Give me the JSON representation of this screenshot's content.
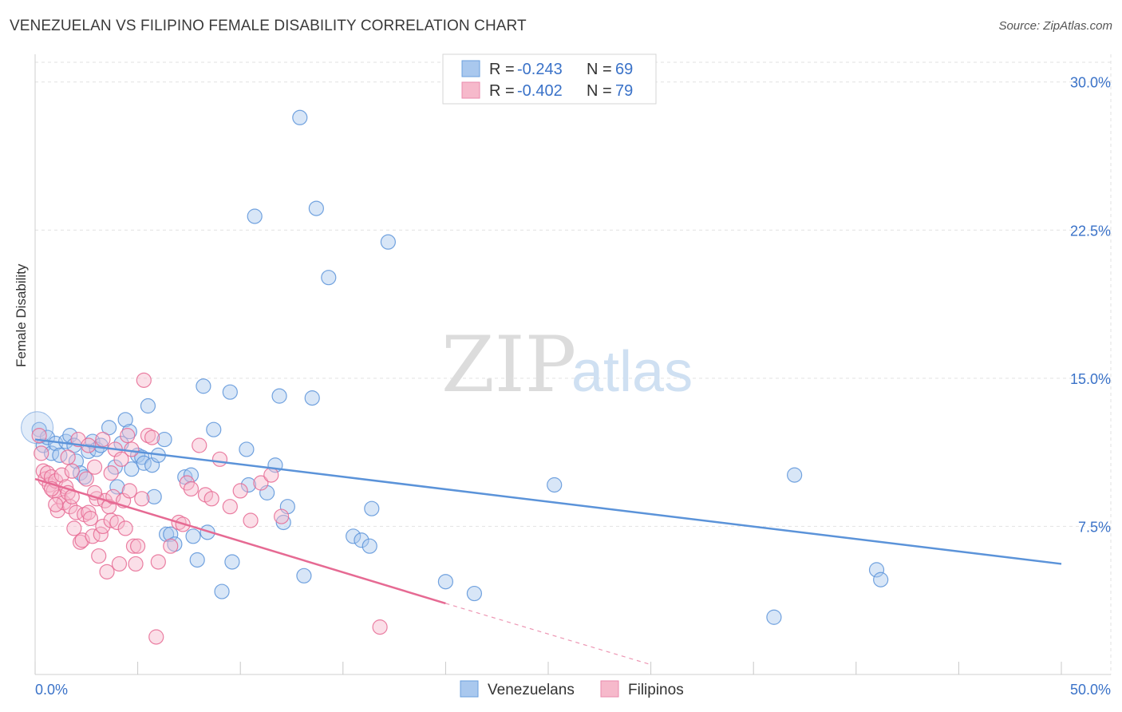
{
  "header": {
    "title": "VENEZUELAN VS FILIPINO FEMALE DISABILITY CORRELATION CHART",
    "source": "Source: ZipAtlas.com"
  },
  "watermark": {
    "zip": "ZIP",
    "atlas": "atlas"
  },
  "legend": {
    "rows": [
      {
        "r_label": "R =",
        "r_value": "-0.243",
        "n_label": "N =",
        "n_value": "69",
        "color": "#a9c8ee"
      },
      {
        "r_label": "R =",
        "r_value": "-0.402",
        "n_label": "N =",
        "n_value": "79",
        "color": "#f6b9cb"
      }
    ]
  },
  "bottom_legend": [
    "Venezuelans",
    "Filipinos"
  ],
  "chart_data": {
    "type": "scatter",
    "title": "VENEZUELAN VS FILIPINO FEMALE DISABILITY CORRELATION CHART",
    "xlabel": "",
    "ylabel": "Female Disability",
    "xlim": [
      0,
      50
    ],
    "ylim": [
      0,
      31
    ],
    "x_tick_labels": [
      "0.0%",
      "50.0%"
    ],
    "y_ticks": [
      7.5,
      15.0,
      22.5,
      30.0
    ],
    "y_tick_labels": [
      "7.5%",
      "15.0%",
      "22.5%",
      "30.0%"
    ],
    "grid": true,
    "legend_position": "top-center",
    "series": [
      {
        "name": "Venezuelans",
        "color": "#5b93d9",
        "fill": "#a9c8ee",
        "r": -0.243,
        "n": 69,
        "trend": {
          "x": [
            0,
            50
          ],
          "y": [
            11.9,
            5.6
          ]
        },
        "points": [
          [
            0.2,
            12.4
          ],
          [
            0.4,
            11.6
          ],
          [
            0.6,
            12.0
          ],
          [
            0.8,
            11.2
          ],
          [
            1.0,
            11.7
          ],
          [
            1.2,
            11.1
          ],
          [
            1.5,
            11.8
          ],
          [
            1.7,
            12.1
          ],
          [
            1.9,
            11.6
          ],
          [
            2.0,
            10.8
          ],
          [
            2.2,
            10.2
          ],
          [
            2.4,
            10.0
          ],
          [
            2.6,
            11.3
          ],
          [
            2.8,
            11.8
          ],
          [
            3.0,
            11.4
          ],
          [
            3.2,
            11.6
          ],
          [
            3.6,
            12.5
          ],
          [
            3.9,
            10.5
          ],
          [
            4.0,
            9.5
          ],
          [
            4.2,
            11.7
          ],
          [
            4.4,
            12.9
          ],
          [
            4.6,
            12.3
          ],
          [
            4.7,
            10.4
          ],
          [
            5.0,
            11.1
          ],
          [
            5.2,
            11.0
          ],
          [
            5.3,
            10.7
          ],
          [
            5.5,
            13.6
          ],
          [
            5.7,
            10.6
          ],
          [
            5.8,
            9.0
          ],
          [
            6.0,
            11.1
          ],
          [
            6.3,
            11.9
          ],
          [
            6.4,
            7.1
          ],
          [
            6.6,
            7.1
          ],
          [
            6.8,
            6.6
          ],
          [
            7.3,
            10.0
          ],
          [
            7.6,
            10.1
          ],
          [
            7.7,
            7.0
          ],
          [
            7.9,
            5.8
          ],
          [
            8.2,
            14.6
          ],
          [
            8.4,
            7.2
          ],
          [
            8.7,
            12.4
          ],
          [
            9.1,
            4.2
          ],
          [
            9.5,
            14.3
          ],
          [
            9.6,
            5.7
          ],
          [
            10.3,
            11.4
          ],
          [
            10.4,
            9.6
          ],
          [
            10.7,
            23.2
          ],
          [
            11.3,
            9.2
          ],
          [
            11.7,
            10.6
          ],
          [
            11.9,
            14.1
          ],
          [
            12.1,
            7.7
          ],
          [
            12.3,
            8.5
          ],
          [
            12.9,
            28.2
          ],
          [
            13.1,
            5.0
          ],
          [
            13.5,
            14.0
          ],
          [
            13.7,
            23.6
          ],
          [
            14.3,
            20.1
          ],
          [
            15.5,
            7.0
          ],
          [
            15.9,
            6.8
          ],
          [
            16.3,
            6.5
          ],
          [
            16.4,
            8.4
          ],
          [
            17.2,
            21.9
          ],
          [
            20.0,
            4.7
          ],
          [
            21.4,
            4.1
          ],
          [
            25.3,
            9.6
          ],
          [
            36.0,
            2.9
          ],
          [
            37.0,
            10.1
          ],
          [
            41.0,
            5.3
          ],
          [
            41.2,
            4.8
          ]
        ]
      },
      {
        "name": "Filipinos",
        "color": "#e66a93",
        "fill": "#f6b9cb",
        "r": -0.402,
        "n": 79,
        "trend": {
          "x": [
            0,
            20
          ],
          "y": [
            9.9,
            3.6
          ]
        },
        "trend_extension": {
          "x": [
            20,
            30
          ],
          "y": [
            3.6,
            0.5
          ]
        },
        "points": [
          [
            0.2,
            12.1
          ],
          [
            0.3,
            11.2
          ],
          [
            0.4,
            10.3
          ],
          [
            0.5,
            9.9
          ],
          [
            0.6,
            10.2
          ],
          [
            0.7,
            9.6
          ],
          [
            0.8,
            10.0
          ],
          [
            0.9,
            9.3
          ],
          [
            1.0,
            9.8
          ],
          [
            1.1,
            8.3
          ],
          [
            1.2,
            9.0
          ],
          [
            1.3,
            10.1
          ],
          [
            1.4,
            8.7
          ],
          [
            1.5,
            9.5
          ],
          [
            1.6,
            9.2
          ],
          [
            1.7,
            8.5
          ],
          [
            1.8,
            9.0
          ],
          [
            1.9,
            7.4
          ],
          [
            2.0,
            8.2
          ],
          [
            2.1,
            11.9
          ],
          [
            2.2,
            6.7
          ],
          [
            2.3,
            6.8
          ],
          [
            2.4,
            8.1
          ],
          [
            2.5,
            9.9
          ],
          [
            2.6,
            8.2
          ],
          [
            2.7,
            7.9
          ],
          [
            2.8,
            7.0
          ],
          [
            2.9,
            10.5
          ],
          [
            3.0,
            8.9
          ],
          [
            3.1,
            6.0
          ],
          [
            3.2,
            7.1
          ],
          [
            3.3,
            7.5
          ],
          [
            3.4,
            8.8
          ],
          [
            3.5,
            5.2
          ],
          [
            3.6,
            8.5
          ],
          [
            3.7,
            7.8
          ],
          [
            3.8,
            9.0
          ],
          [
            3.9,
            11.4
          ],
          [
            4.0,
            7.7
          ],
          [
            4.1,
            5.6
          ],
          [
            4.2,
            10.9
          ],
          [
            4.3,
            8.8
          ],
          [
            4.4,
            7.4
          ],
          [
            4.6,
            9.3
          ],
          [
            4.7,
            11.4
          ],
          [
            4.8,
            6.5
          ],
          [
            4.9,
            5.6
          ],
          [
            5.0,
            6.5
          ],
          [
            5.2,
            8.9
          ],
          [
            5.3,
            14.9
          ],
          [
            5.5,
            12.1
          ],
          [
            5.7,
            12.0
          ],
          [
            5.9,
            1.9
          ],
          [
            6.0,
            5.7
          ],
          [
            6.6,
            6.5
          ],
          [
            7.0,
            7.7
          ],
          [
            7.2,
            7.6
          ],
          [
            7.4,
            9.7
          ],
          [
            7.6,
            9.4
          ],
          [
            8.0,
            11.6
          ],
          [
            8.3,
            9.1
          ],
          [
            8.6,
            8.9
          ],
          [
            9.0,
            10.9
          ],
          [
            9.5,
            8.5
          ],
          [
            10.0,
            9.3
          ],
          [
            10.5,
            7.8
          ],
          [
            11.0,
            9.7
          ],
          [
            11.5,
            10.1
          ],
          [
            12.0,
            8.0
          ],
          [
            16.8,
            2.4
          ],
          [
            1.0,
            8.6
          ],
          [
            1.8,
            10.3
          ],
          [
            2.6,
            11.6
          ],
          [
            3.3,
            11.9
          ],
          [
            4.5,
            12.1
          ],
          [
            0.8,
            9.4
          ],
          [
            1.6,
            11.0
          ],
          [
            2.9,
            9.2
          ],
          [
            3.7,
            10.2
          ]
        ]
      }
    ]
  }
}
